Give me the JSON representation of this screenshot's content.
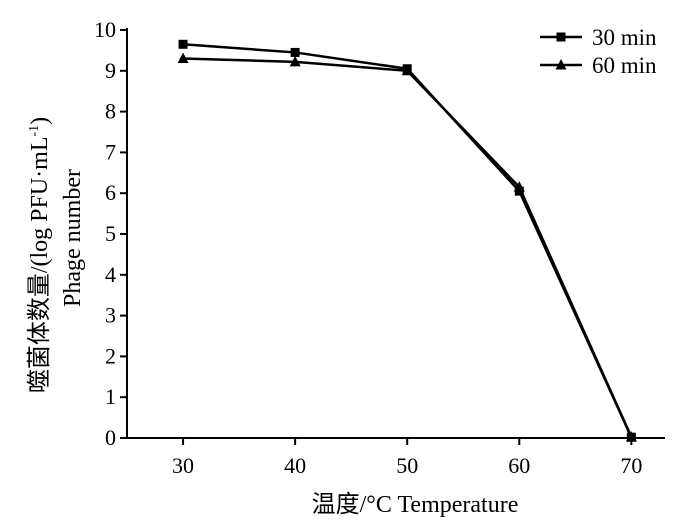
{
  "chart_data": {
    "type": "line",
    "x": [
      30,
      40,
      50,
      60,
      70
    ],
    "series": [
      {
        "name": "30 min",
        "marker": "square",
        "values": [
          9.65,
          9.45,
          9.05,
          6.05,
          0.02
        ]
      },
      {
        "name": "60 min",
        "marker": "triangle",
        "values": [
          9.3,
          9.22,
          9.0,
          6.15,
          0.02
        ]
      }
    ],
    "xlabel": "温度/°C  Temperature",
    "ylabel_cn": "噬菌体数量/(log PFU·mL",
    "ylabel_sup": "-1",
    "ylabel_close": ")",
    "ylabel_en": "Phage number",
    "xlim": [
      25,
      73
    ],
    "ylim": [
      0,
      10
    ],
    "xticks": [
      30,
      40,
      50,
      60,
      70
    ],
    "yticks": [
      0,
      1,
      2,
      3,
      4,
      5,
      6,
      7,
      8,
      9,
      10
    ],
    "legend_position": "top-right",
    "grid": false,
    "colors": {
      "line": "#000000",
      "background": "#ffffff"
    }
  }
}
